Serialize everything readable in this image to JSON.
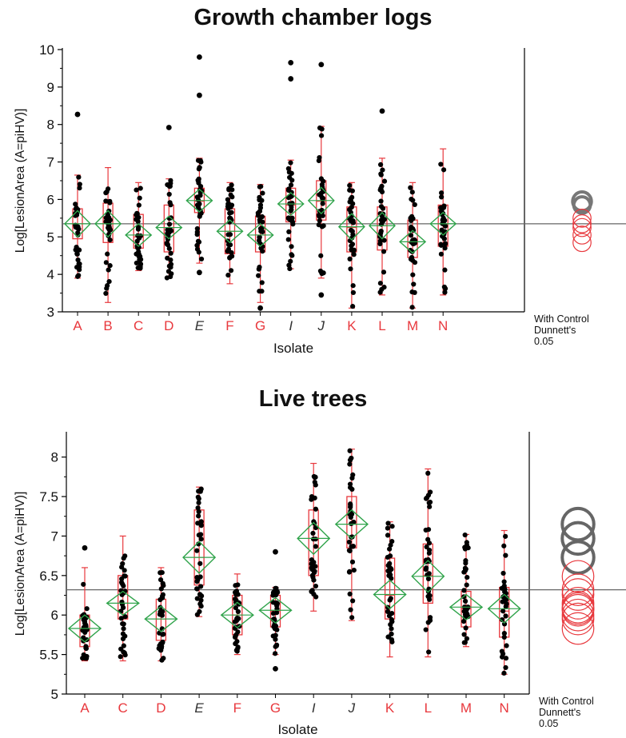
{
  "chart_data": [
    {
      "type": "box",
      "title": "Growth chamber logs",
      "xlabel": "Isolate",
      "ylabel": "Log[LesionArea (A=piHV)]",
      "ylim": [
        3,
        10
      ],
      "yticks": [
        3,
        4,
        5,
        6,
        7,
        8,
        9,
        10
      ],
      "reference_line": 5.35,
      "categories": [
        "A",
        "B",
        "C",
        "D",
        "E",
        "F",
        "G",
        "I",
        "J",
        "K",
        "L",
        "M",
        "N"
      ],
      "category_colors": [
        "#e8383d",
        "#e8383d",
        "#e8383d",
        "#e8383d",
        "#333333",
        "#e8383d",
        "#e8383d",
        "#333333",
        "#333333",
        "#e8383d",
        "#e8383d",
        "#e8383d",
        "#e8383d"
      ],
      "category_italic": [
        false,
        false,
        false,
        false,
        true,
        false,
        false,
        true,
        true,
        false,
        false,
        false,
        false
      ],
      "boxes": [
        {
          "min": 3.9,
          "q1": 4.95,
          "median": 5.35,
          "q3": 5.75,
          "max": 6.65,
          "mean": 5.35,
          "ci": 0.35
        },
        {
          "min": 3.25,
          "q1": 4.85,
          "median": 5.35,
          "q3": 5.9,
          "max": 6.85,
          "mean": 5.35,
          "ci": 0.35
        },
        {
          "min": 4.1,
          "q1": 4.7,
          "median": 5.0,
          "q3": 5.6,
          "max": 6.45,
          "mean": 5.05,
          "ci": 0.3
        },
        {
          "min": 3.9,
          "q1": 4.6,
          "median": 5.25,
          "q3": 5.85,
          "max": 6.55,
          "mean": 5.25,
          "ci": 0.3
        },
        {
          "min": 4.3,
          "q1": 5.65,
          "median": 5.95,
          "q3": 6.3,
          "max": 7.1,
          "mean": 5.97,
          "ci": 0.3
        },
        {
          "min": 3.75,
          "q1": 4.55,
          "median": 5.15,
          "q3": 5.75,
          "max": 6.45,
          "mean": 5.15,
          "ci": 0.3
        },
        {
          "min": 3.25,
          "q1": 4.6,
          "median": 5.05,
          "q3": 5.55,
          "max": 6.4,
          "mean": 5.05,
          "ci": 0.3
        },
        {
          "min": 4.15,
          "q1": 5.4,
          "median": 5.85,
          "q3": 6.3,
          "max": 7.05,
          "mean": 5.88,
          "ci": 0.3
        },
        {
          "min": 3.9,
          "q1": 5.45,
          "median": 5.95,
          "q3": 6.5,
          "max": 7.95,
          "mean": 5.97,
          "ci": 0.35
        },
        {
          "min": 3.1,
          "q1": 4.6,
          "median": 5.25,
          "q3": 5.8,
          "max": 6.45,
          "mean": 5.27,
          "ci": 0.35
        },
        {
          "min": 3.45,
          "q1": 4.65,
          "median": 5.3,
          "q3": 5.8,
          "max": 7.1,
          "mean": 5.3,
          "ci": 0.35
        },
        {
          "min": 3.1,
          "q1": 4.45,
          "median": 4.85,
          "q3": 5.45,
          "max": 6.45,
          "mean": 4.87,
          "ci": 0.3
        },
        {
          "min": 3.45,
          "q1": 4.75,
          "median": 5.35,
          "q3": 5.85,
          "max": 7.35,
          "mean": 5.35,
          "ci": 0.3
        }
      ],
      "outliers": [
        {
          "category": "A",
          "y": 8.27
        },
        {
          "category": "D",
          "y": 7.92
        },
        {
          "category": "E",
          "y": 9.8
        },
        {
          "category": "E",
          "y": 8.78
        },
        {
          "category": "E",
          "y": 4.05
        },
        {
          "category": "G",
          "y": 3.1
        },
        {
          "category": "I",
          "y": 9.65
        },
        {
          "category": "I",
          "y": 9.22
        },
        {
          "category": "J",
          "y": 9.6
        },
        {
          "category": "J",
          "y": 3.45
        },
        {
          "category": "L",
          "y": 8.36
        }
      ],
      "dunnett_label": [
        "With Control",
        "Dunnett's",
        "0.05"
      ],
      "dunnett_circles": [
        {
          "center": 5.95,
          "radius": 0.25,
          "color": "#777777"
        },
        {
          "center": 5.85,
          "radius": 0.22,
          "color": "#777777"
        },
        {
          "center": 5.5,
          "radius": 0.24,
          "color": "#e8383d"
        },
        {
          "center": 5.35,
          "radius": 0.24,
          "color": "#e8383d"
        },
        {
          "center": 5.25,
          "radius": 0.24,
          "color": "#e8383d"
        },
        {
          "center": 5.05,
          "radius": 0.24,
          "color": "#e8383d"
        },
        {
          "center": 4.85,
          "radius": 0.24,
          "color": "#e8383d"
        }
      ]
    },
    {
      "type": "box",
      "title": "Live trees",
      "xlabel": "Isolate",
      "ylabel": "Log[LesionArea (A=piHV)]",
      "ylim": [
        5,
        8.3
      ],
      "yticks": [
        5,
        5.5,
        6,
        6.5,
        7,
        7.5,
        8
      ],
      "reference_line": 6.32,
      "categories": [
        "A",
        "C",
        "D",
        "E",
        "F",
        "G",
        "I",
        "J",
        "K",
        "L",
        "M",
        "N"
      ],
      "category_colors": [
        "#e8383d",
        "#e8383d",
        "#e8383d",
        "#333333",
        "#e8383d",
        "#e8383d",
        "#333333",
        "#333333",
        "#e8383d",
        "#e8383d",
        "#e8383d",
        "#e8383d"
      ],
      "category_italic": [
        false,
        false,
        false,
        true,
        false,
        false,
        true,
        true,
        false,
        false,
        false,
        false
      ],
      "boxes": [
        {
          "min": 5.42,
          "q1": 5.6,
          "median": 5.83,
          "q3": 6.0,
          "max": 6.6,
          "mean": 5.83,
          "ci": 0.17
        },
        {
          "min": 5.42,
          "q1": 5.95,
          "median": 6.15,
          "q3": 6.5,
          "max": 7.0,
          "mean": 6.15,
          "ci": 0.15
        },
        {
          "min": 5.42,
          "q1": 5.68,
          "median": 5.95,
          "q3": 6.2,
          "max": 6.6,
          "mean": 5.95,
          "ci": 0.16
        },
        {
          "min": 5.98,
          "q1": 6.38,
          "median": 6.73,
          "q3": 7.33,
          "max": 7.62,
          "mean": 6.73,
          "ci": 0.2
        },
        {
          "min": 5.5,
          "q1": 5.75,
          "median": 6.0,
          "q3": 6.25,
          "max": 6.52,
          "mean": 6.0,
          "ci": 0.16
        },
        {
          "min": 5.5,
          "q1": 5.85,
          "median": 6.05,
          "q3": 6.25,
          "max": 6.35,
          "mean": 6.06,
          "ci": 0.16
        },
        {
          "min": 6.05,
          "q1": 6.5,
          "median": 6.97,
          "q3": 7.33,
          "max": 7.92,
          "mean": 6.97,
          "ci": 0.2
        },
        {
          "min": 5.93,
          "q1": 6.85,
          "median": 7.15,
          "q3": 7.5,
          "max": 8.1,
          "mean": 7.15,
          "ci": 0.18
        },
        {
          "min": 5.47,
          "q1": 5.95,
          "median": 6.25,
          "q3": 6.72,
          "max": 7.18,
          "mean": 6.26,
          "ci": 0.18
        },
        {
          "min": 5.47,
          "q1": 6.15,
          "median": 6.5,
          "q3": 6.9,
          "max": 7.85,
          "mean": 6.49,
          "ci": 0.2
        },
        {
          "min": 5.6,
          "q1": 5.85,
          "median": 6.08,
          "q3": 6.3,
          "max": 7.02,
          "mean": 6.1,
          "ci": 0.16
        },
        {
          "min": 5.25,
          "q1": 5.72,
          "median": 6.05,
          "q3": 6.35,
          "max": 7.07,
          "mean": 6.08,
          "ci": 0.18
        }
      ],
      "outliers": [
        {
          "category": "A",
          "y": 6.85
        },
        {
          "category": "G",
          "y": 6.8
        },
        {
          "category": "G",
          "y": 5.32
        }
      ],
      "dunnett_label": [
        "With Control",
        "Dunnett's",
        "0.05"
      ],
      "dunnett_circles": [
        {
          "center": 7.15,
          "radius": 0.2,
          "color": "#666666"
        },
        {
          "center": 6.97,
          "radius": 0.2,
          "color": "#666666"
        },
        {
          "center": 6.73,
          "radius": 0.2,
          "color": "#666666"
        },
        {
          "center": 6.49,
          "radius": 0.2,
          "color": "#e8383d"
        },
        {
          "center": 6.32,
          "radius": 0.2,
          "color": "#e8383d"
        },
        {
          "center": 6.26,
          "radius": 0.2,
          "color": "#e8383d"
        },
        {
          "center": 6.15,
          "radius": 0.2,
          "color": "#e8383d"
        },
        {
          "center": 6.1,
          "radius": 0.2,
          "color": "#e8383d"
        },
        {
          "center": 6.08,
          "radius": 0.2,
          "color": "#e8383d"
        },
        {
          "center": 6.06,
          "radius": 0.2,
          "color": "#e8383d"
        },
        {
          "center": 6.0,
          "radius": 0.2,
          "color": "#e8383d"
        },
        {
          "center": 5.95,
          "radius": 0.2,
          "color": "#e8383d"
        },
        {
          "center": 5.83,
          "radius": 0.2,
          "color": "#e8383d"
        }
      ]
    }
  ]
}
